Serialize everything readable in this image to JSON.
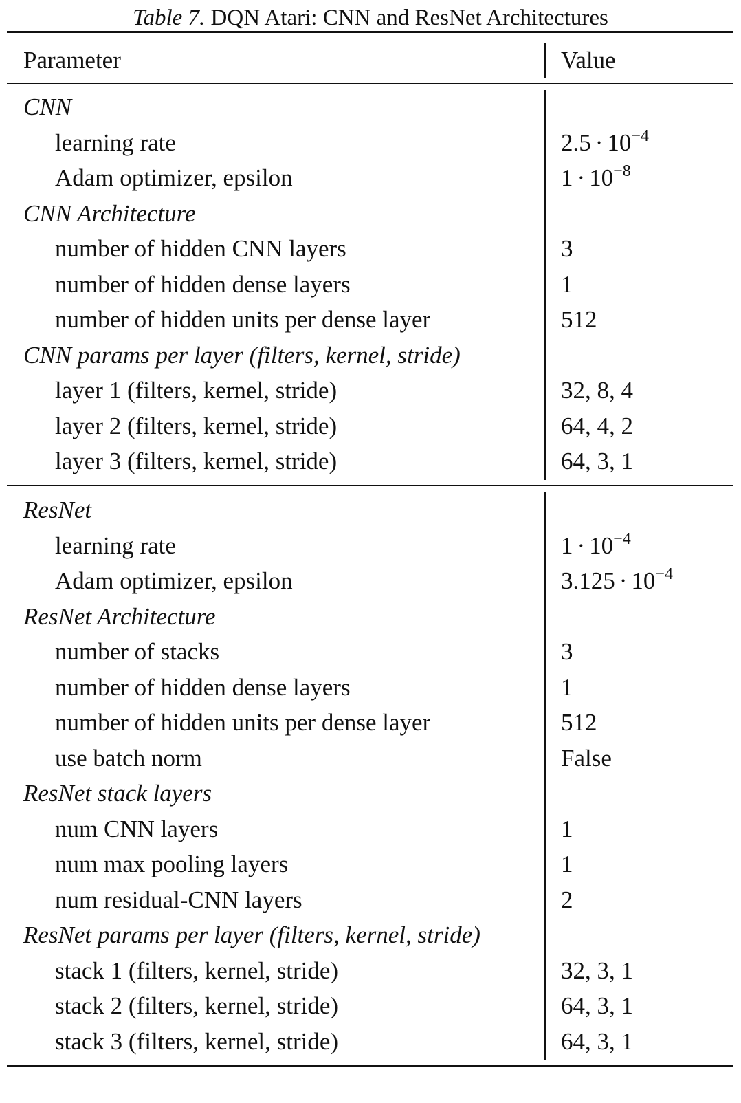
{
  "caption": {
    "label": "Table 7.",
    "text": "DQN Atari: CNN and ResNet Architectures"
  },
  "columns": {
    "parameter": "Parameter",
    "value": "Value"
  },
  "cnn": {
    "title": "CNN",
    "learning_rate": {
      "label": "learning rate",
      "mantissa": "2.5",
      "base": "10",
      "exponent": "−4"
    },
    "adam_epsilon": {
      "label": "Adam optimizer, epsilon",
      "mantissa": "1",
      "base": "10",
      "exponent": "−8"
    },
    "architecture_title": "CNN Architecture",
    "architecture": [
      {
        "label": "number of hidden CNN layers",
        "value": "3"
      },
      {
        "label": "number of hidden dense layers",
        "value": "1"
      },
      {
        "label": "number of hidden units per dense layer",
        "value": "512"
      }
    ],
    "params_title": "CNN params per layer (filters, kernel, stride)",
    "params": [
      {
        "label": "layer 1 (filters, kernel, stride)",
        "value": "32, 8, 4"
      },
      {
        "label": "layer 2 (filters, kernel, stride)",
        "value": "64, 4, 2"
      },
      {
        "label": "layer 3 (filters, kernel, stride)",
        "value": "64, 3, 1"
      }
    ]
  },
  "resnet": {
    "title": "ResNet",
    "learning_rate": {
      "label": "learning rate",
      "mantissa": "1",
      "base": "10",
      "exponent": "−4"
    },
    "adam_epsilon": {
      "label": "Adam optimizer, epsilon",
      "mantissa": "3.125",
      "base": "10",
      "exponent": "−4"
    },
    "architecture_title": "ResNet Architecture",
    "architecture": [
      {
        "label": "number of stacks",
        "value": "3"
      },
      {
        "label": "number of hidden dense layers",
        "value": "1"
      },
      {
        "label": "number of hidden units per dense layer",
        "value": "512"
      },
      {
        "label": "use batch norm",
        "value": "False"
      }
    ],
    "stack_layers_title": "ResNet stack layers",
    "stack_layers": [
      {
        "label": "num CNN layers",
        "value": "1"
      },
      {
        "label": "num max pooling layers",
        "value": "1"
      },
      {
        "label": "num residual-CNN layers",
        "value": "2"
      }
    ],
    "params_title": "ResNet params per layer (filters, kernel, stride)",
    "params": [
      {
        "label": "stack 1 (filters, kernel, stride)",
        "value": "32, 3, 1"
      },
      {
        "label": "stack 2 (filters, kernel, stride)",
        "value": "64, 3, 1"
      },
      {
        "label": "stack 3 (filters, kernel, stride)",
        "value": "64, 3, 1"
      }
    ]
  }
}
